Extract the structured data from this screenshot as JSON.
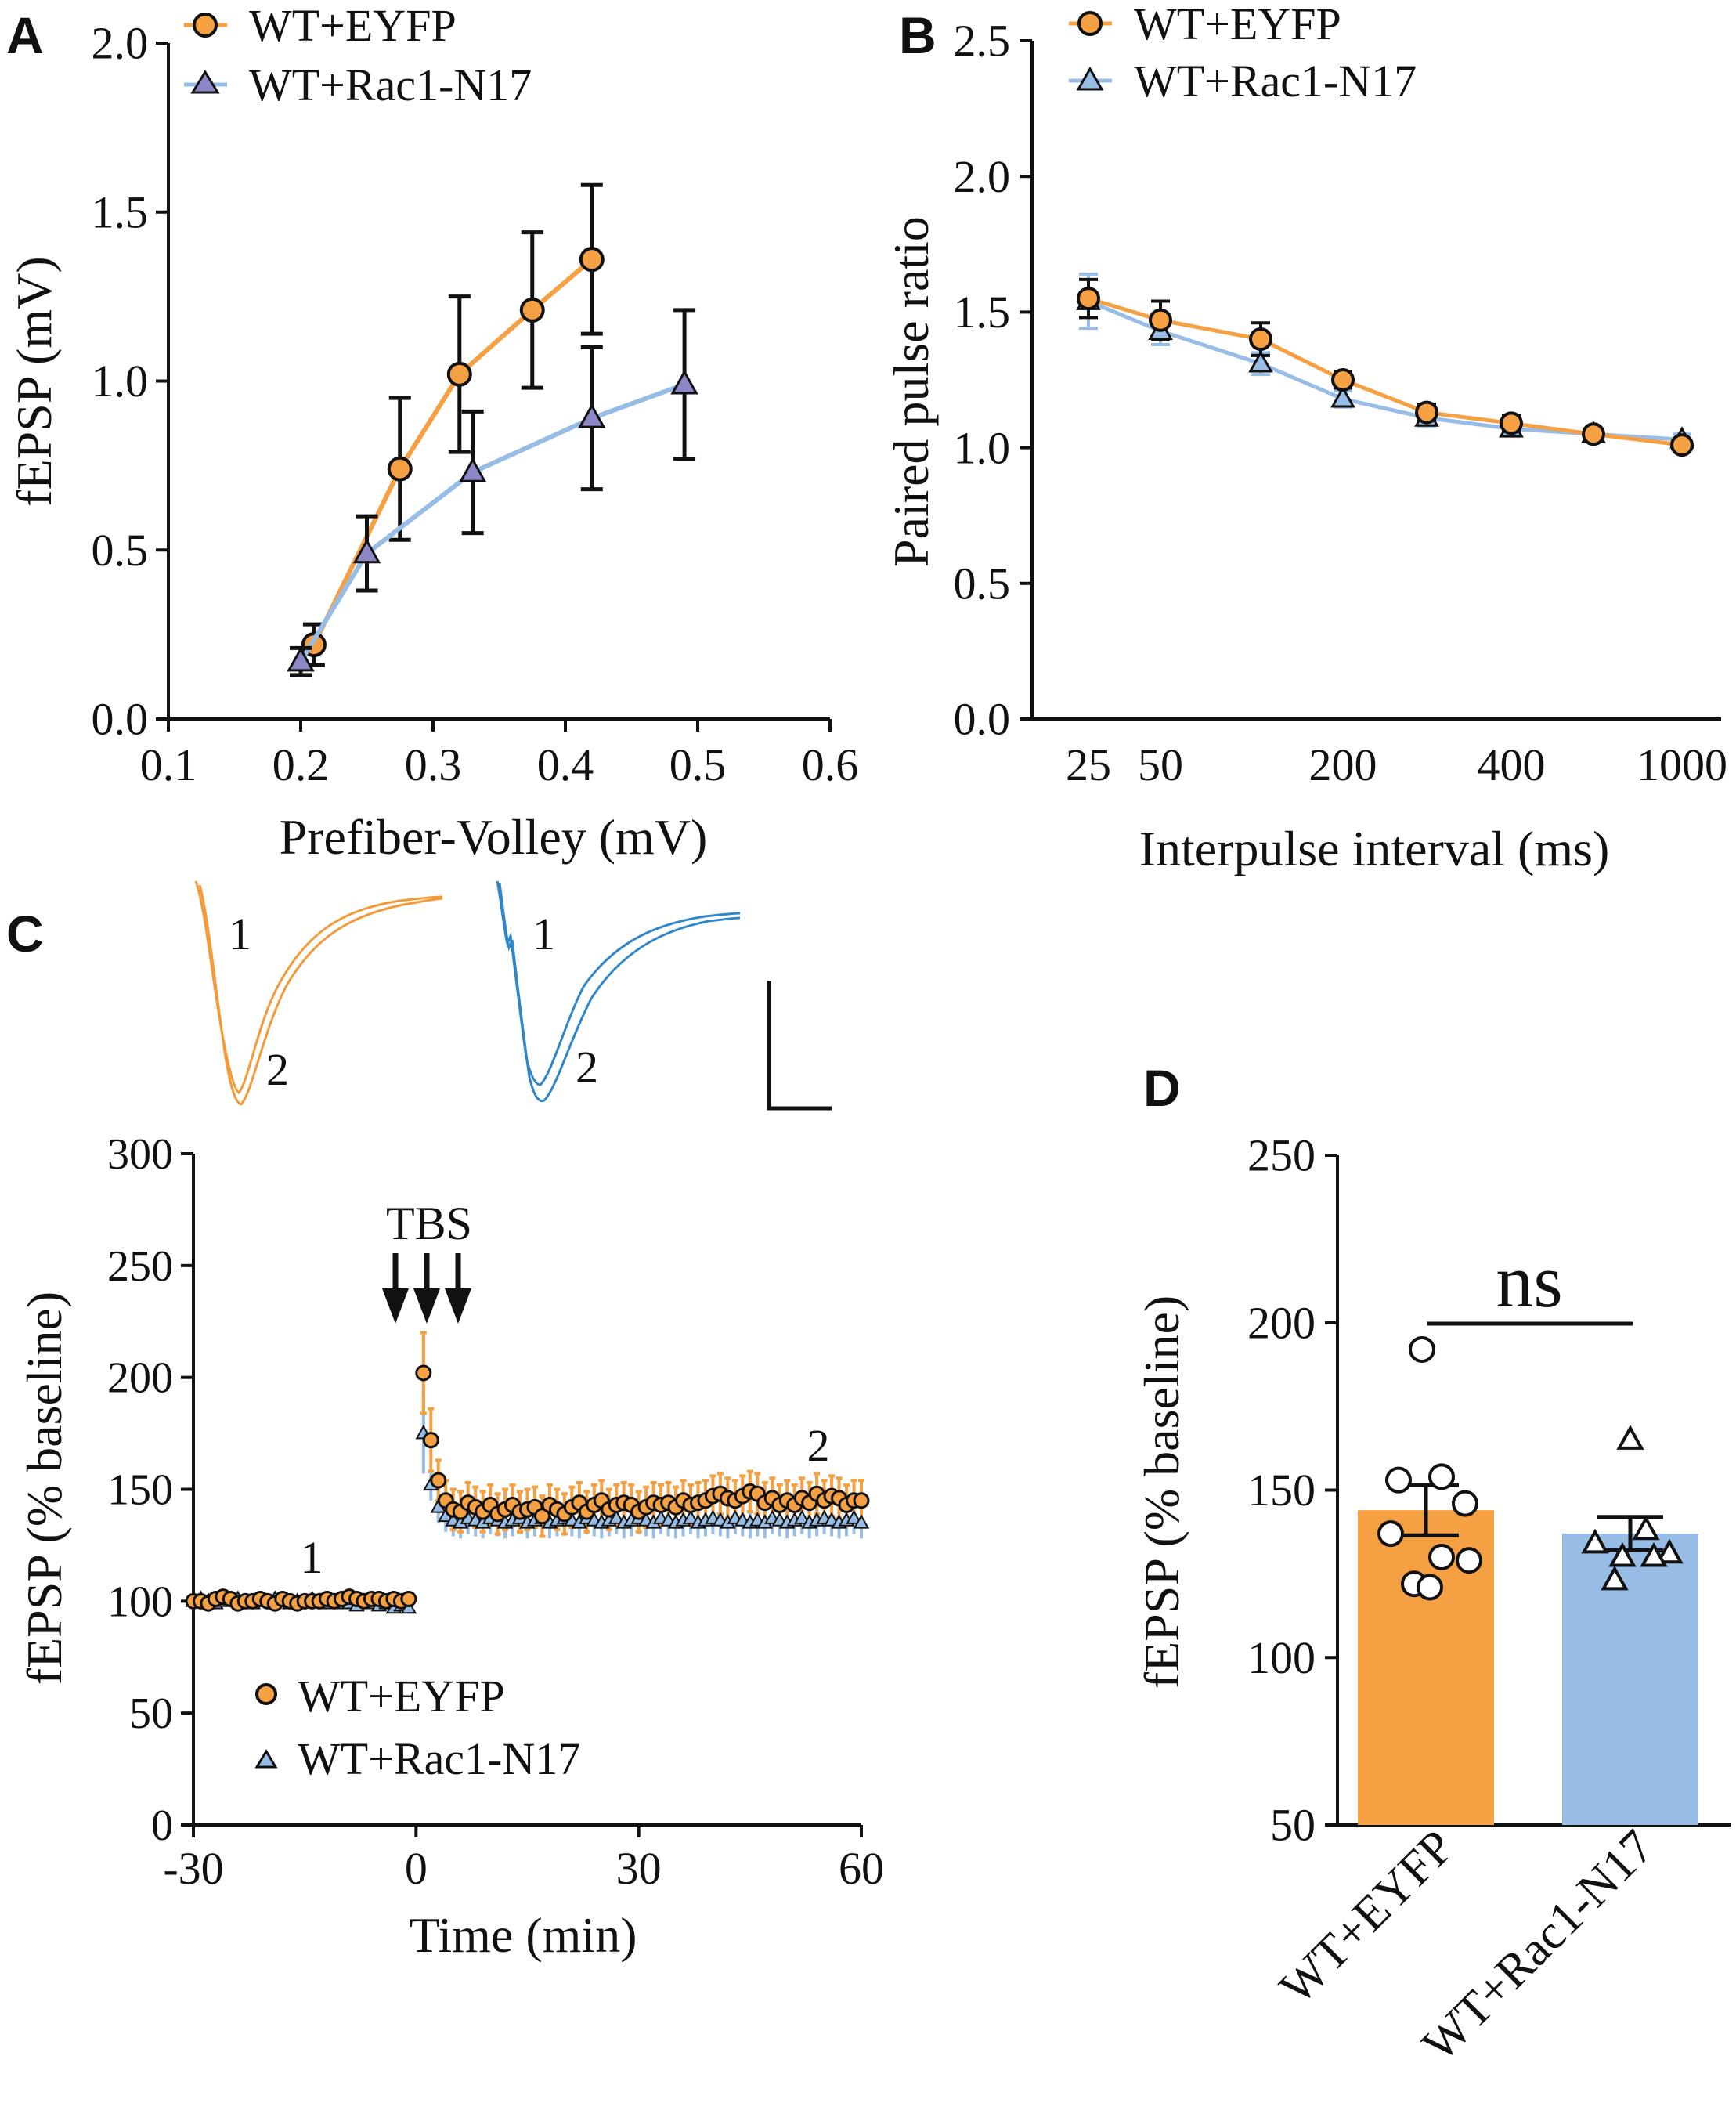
{
  "colors": {
    "eyfp": "#f5a043",
    "rac1": "#97bde6",
    "ink": "#111111",
    "trace_orange": "#f39a3a",
    "trace_blue": "#2f86c8"
  },
  "chart_data": [
    {
      "id": "A",
      "panel": "A",
      "type": "line",
      "xlabel": "Prefiber-Volley (mV)",
      "ylabel": "fEPSP (mV)",
      "xlim": [
        0.1,
        0.6
      ],
      "ylim": [
        0.0,
        2.0
      ],
      "xticks": [
        "0.1",
        "0.2",
        "0.3",
        "0.4",
        "0.5",
        "0.6"
      ],
      "yticks": [
        "0.0",
        "0.5",
        "1.0",
        "1.5",
        "2.0"
      ],
      "legend": "top-left",
      "series": [
        {
          "name": "WT+EYFP",
          "marker": "circle",
          "color_key": "eyfp",
          "x": [
            0.21,
            0.275,
            0.32,
            0.375,
            0.42
          ],
          "y": [
            0.22,
            0.74,
            1.02,
            1.21,
            1.36
          ],
          "err": [
            0.06,
            0.21,
            0.23,
            0.23,
            0.22
          ]
        },
        {
          "name": "WT+Rac1-N17",
          "marker": "triangle",
          "color_key": "rac1",
          "x": [
            0.2,
            0.25,
            0.33,
            0.42,
            0.49
          ],
          "y": [
            0.17,
            0.49,
            0.73,
            0.89,
            0.99
          ],
          "err": [
            0.04,
            0.11,
            0.18,
            0.21,
            0.22
          ]
        }
      ]
    },
    {
      "id": "B",
      "panel": "B",
      "type": "line",
      "xlabel": "Interpulse interval (ms)",
      "ylabel": "Paired pulse ratio",
      "ylim": [
        0.0,
        2.5
      ],
      "categories": [
        "25",
        "50",
        "100",
        "200",
        "300",
        "400",
        "600",
        "1000"
      ],
      "xtick_labels": [
        "25",
        "50",
        "200",
        "400",
        "1000"
      ],
      "yticks": [
        "0.0",
        "0.5",
        "1.0",
        "1.5",
        "2.0",
        "2.5"
      ],
      "legend": "top-right",
      "series": [
        {
          "name": "WT+EYFP",
          "marker": "circle",
          "color_key": "eyfp",
          "values": [
            1.55,
            1.47,
            1.4,
            1.25,
            1.13,
            1.09,
            1.05,
            1.01
          ],
          "err": [
            0.07,
            0.07,
            0.06,
            0.03,
            0.03,
            0.03,
            0.02,
            0.02
          ]
        },
        {
          "name": "WT+Rac1-N17",
          "marker": "triangle",
          "color_key": "rac1",
          "values": [
            1.54,
            1.43,
            1.31,
            1.18,
            1.11,
            1.07,
            1.05,
            1.03
          ],
          "err": [
            0.1,
            0.05,
            0.04,
            0.03,
            0.03,
            0.02,
            0.02,
            0.02
          ]
        }
      ]
    },
    {
      "id": "C",
      "panel": "C",
      "type": "scatter",
      "xlabel": "Time (min)",
      "ylabel": "fEPSP (% baseline)",
      "xlim": [
        -30,
        60
      ],
      "ylim": [
        0,
        300
      ],
      "xticks": [
        "-30",
        "0",
        "30",
        "60"
      ],
      "yticks": [
        "0",
        "50",
        "100",
        "150",
        "200",
        "250",
        "300"
      ],
      "legend": "bottom-left",
      "annotations": {
        "tbs": "TBS",
        "baseline_marker": "1",
        "post_marker": "2",
        "trace_label_1": "1",
        "trace_label_2": "2"
      },
      "series": [
        {
          "name": "WT+EYFP",
          "marker": "circle",
          "color_key": "eyfp",
          "x": [
            -30,
            -29,
            -28,
            -27,
            -26,
            -25,
            -24,
            -23,
            -22,
            -21,
            -20,
            -19,
            -18,
            -17,
            -16,
            -15,
            -14,
            -13,
            -12,
            -11,
            -10,
            -9,
            -8,
            -7,
            -6,
            -5,
            -4,
            -3,
            -2,
            -1,
            1,
            2,
            3,
            4,
            5,
            6,
            7,
            8,
            9,
            10,
            11,
            12,
            13,
            14,
            15,
            16,
            17,
            18,
            19,
            20,
            21,
            22,
            23,
            24,
            25,
            26,
            27,
            28,
            29,
            30,
            31,
            32,
            33,
            34,
            35,
            36,
            37,
            38,
            39,
            40,
            41,
            42,
            43,
            44,
            45,
            46,
            47,
            48,
            49,
            50,
            51,
            52,
            53,
            54,
            55,
            56,
            57,
            58,
            59,
            60
          ],
          "y": [
            100,
            100,
            99,
            101,
            102,
            101,
            99,
            100,
            100,
            101,
            100,
            99,
            101,
            100,
            99,
            100,
            100,
            100,
            101,
            100,
            101,
            102,
            101,
            100,
            101,
            101,
            100,
            101,
            100,
            101,
            202,
            172,
            154,
            145,
            141,
            140,
            144,
            142,
            140,
            143,
            139,
            141,
            143,
            140,
            141,
            142,
            138,
            143,
            141,
            139,
            142,
            144,
            140,
            143,
            145,
            141,
            143,
            144,
            143,
            140,
            142,
            144,
            143,
            144,
            142,
            145,
            143,
            144,
            145,
            147,
            148,
            146,
            145,
            147,
            149,
            148,
            144,
            146,
            143,
            145,
            143,
            146,
            144,
            148,
            145,
            147,
            146,
            143,
            145,
            145
          ],
          "err_mid": 9
        },
        {
          "name": "WT+Rac1-N17",
          "marker": "triangle",
          "color_key": "rac1",
          "x": [
            -30,
            -29,
            -28,
            -27,
            -26,
            -25,
            -24,
            -23,
            -22,
            -21,
            -20,
            -19,
            -18,
            -17,
            -16,
            -15,
            -14,
            -13,
            -12,
            -11,
            -10,
            -9,
            -8,
            -7,
            -6,
            -5,
            -4,
            -3,
            -2,
            -1,
            1,
            2,
            3,
            4,
            5,
            6,
            7,
            8,
            9,
            10,
            11,
            12,
            13,
            14,
            15,
            16,
            17,
            18,
            19,
            20,
            21,
            22,
            23,
            24,
            25,
            26,
            27,
            28,
            29,
            30,
            31,
            32,
            33,
            34,
            35,
            36,
            37,
            38,
            39,
            40,
            41,
            42,
            43,
            44,
            45,
            46,
            47,
            48,
            49,
            50,
            51,
            52,
            53,
            54,
            55,
            56,
            57,
            58,
            59,
            60
          ],
          "y": [
            100,
            101,
            100,
            99,
            100,
            100,
            101,
            100,
            99,
            100,
            100,
            101,
            100,
            99,
            100,
            100,
            101,
            100,
            99,
            100,
            99,
            99,
            98,
            100,
            99,
            98,
            99,
            97,
            98,
            97,
            175,
            152,
            142,
            138,
            136,
            135,
            137,
            136,
            135,
            137,
            136,
            135,
            136,
            137,
            135,
            136,
            137,
            135,
            136,
            137,
            136,
            135,
            137,
            136,
            135,
            136,
            137,
            135,
            136,
            137,
            136,
            135,
            137,
            136,
            135,
            136,
            137,
            135,
            136,
            137,
            136,
            135,
            137,
            136,
            135,
            136,
            135,
            137,
            136,
            135,
            136,
            137,
            135,
            136,
            137,
            136,
            135,
            136,
            137,
            135
          ],
          "err_mid": 7
        }
      ]
    },
    {
      "id": "D",
      "panel": "D",
      "type": "bar",
      "ylabel": "fEPSP (% baseline)",
      "ylim": [
        50,
        250
      ],
      "yticks": [
        "50",
        "100",
        "150",
        "200",
        "250"
      ],
      "categories": [
        "WT+EYFP",
        "WT+Rac1-N17"
      ],
      "values": [
        144,
        137
      ],
      "sem": [
        7.5,
        5
      ],
      "significance": "ns",
      "series": [
        {
          "name": "WT+EYFP",
          "marker": "circle",
          "color_key": "eyfp",
          "points": [
            192,
            154,
            153,
            146,
            137,
            130,
            129,
            122,
            121
          ]
        },
        {
          "name": "WT+Rac1-N17",
          "marker": "triangle",
          "color_key": "rac1",
          "points": [
            165,
            138,
            134,
            131,
            130,
            130,
            123
          ]
        }
      ]
    }
  ]
}
